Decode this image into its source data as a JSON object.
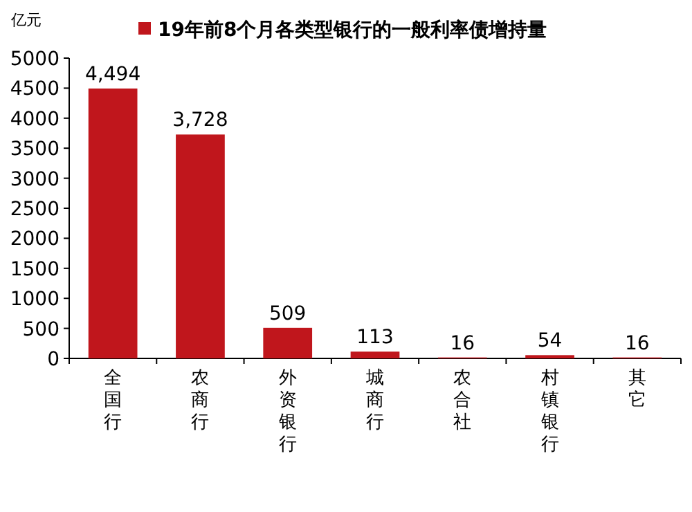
{
  "chart_data": {
    "type": "bar",
    "ylabel": "亿元",
    "categories": [
      "全国行",
      "农商行",
      "外资银行",
      "城商行",
      "农合社",
      "村镇银行",
      "其它"
    ],
    "series": [
      {
        "name": "19年前8个月各类型银行的一般利率债增持量",
        "color": "#c0161c",
        "values": [
          4494,
          3728,
          509,
          113,
          16,
          54,
          16
        ],
        "value_labels": [
          "4,494",
          "3,728",
          "509",
          "113",
          "16",
          "54",
          "16"
        ]
      }
    ],
    "ylim": [
      0,
      5000
    ],
    "yticks": [
      0,
      500,
      1000,
      1500,
      2000,
      2500,
      3000,
      3500,
      4000,
      4500,
      5000
    ],
    "legend": "top"
  }
}
